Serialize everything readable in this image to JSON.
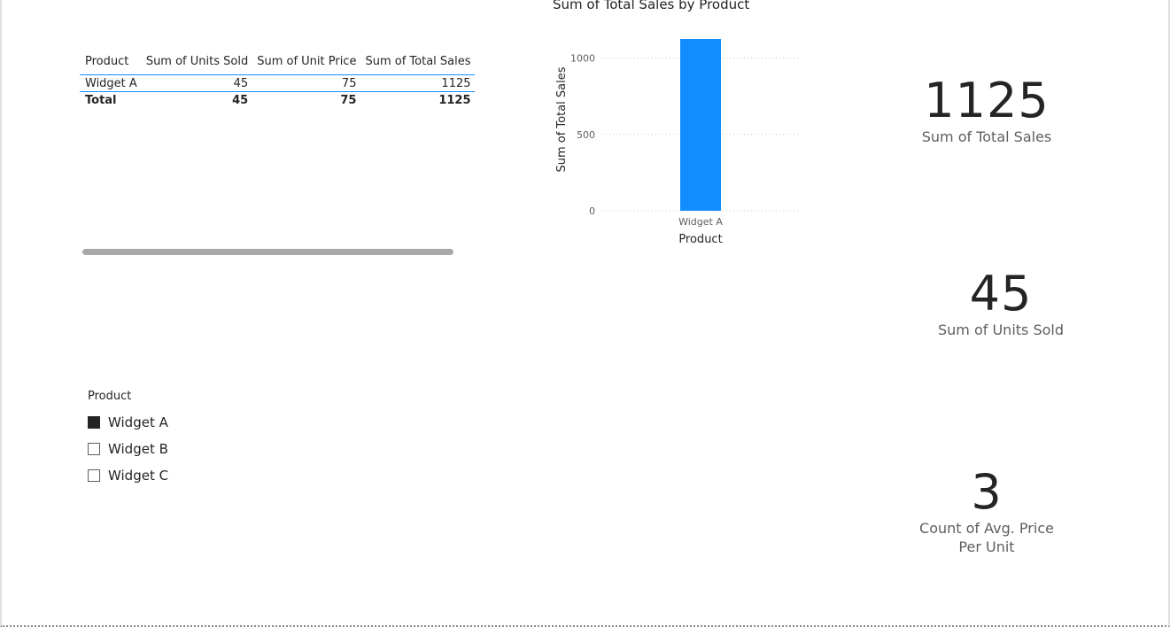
{
  "table": {
    "headers": [
      "Product",
      "Sum of Units Sold",
      "Sum of Unit Price",
      "Sum of Total Sales"
    ],
    "rows": [
      [
        "Widget A",
        "45",
        "75",
        "1125"
      ]
    ],
    "total": [
      "Total",
      "45",
      "75",
      "1125"
    ]
  },
  "slicer": {
    "title": "Product",
    "items": [
      {
        "label": "Widget A",
        "checked": true
      },
      {
        "label": "Widget B",
        "checked": false
      },
      {
        "label": "Widget C",
        "checked": false
      }
    ]
  },
  "chart_data": {
    "type": "bar",
    "title": "Sum of Total Sales by Product",
    "xlabel": "Product",
    "ylabel": "Sum of Total Sales",
    "categories": [
      "Widget A"
    ],
    "values": [
      1125
    ],
    "ylim": [
      0,
      1125
    ],
    "yticks": [
      0,
      500,
      1000
    ],
    "grid": true,
    "bar_color": "#118dff"
  },
  "cards": {
    "total_sales": {
      "value": "1125",
      "label": "Sum of Total Sales"
    },
    "units_sold": {
      "value": "45",
      "label": "Sum of Units Sold"
    },
    "count_avg_price": {
      "value": "3",
      "label": "Count of Avg. Price Per Unit"
    }
  }
}
